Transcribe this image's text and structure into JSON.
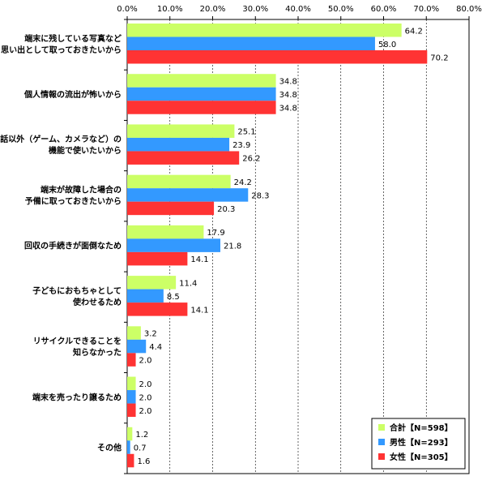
{
  "chart_data": {
    "type": "bar",
    "orientation": "horizontal",
    "xlim": [
      0,
      80
    ],
    "x_ticks": [
      "0.0%",
      "10.0%",
      "20.0%",
      "30.0%",
      "40.0%",
      "50.0%",
      "60.0%",
      "70.0%",
      "80.0%"
    ],
    "grid": true,
    "legend_position": "bottom-right",
    "categories": [
      [
        "端末に残している写真など",
        "思い出として取っておきたいから"
      ],
      [
        "個人情報の流出が怖いから"
      ],
      [
        "通話以外（ゲーム、カメラなど）の",
        "機能で使いたいから"
      ],
      [
        "端末が故障した場合の",
        "予備に取っておきたいから"
      ],
      [
        "回収の手続きが面倒なため"
      ],
      [
        "子どもにおもちゃとして",
        "使わせるため"
      ],
      [
        "リサイクルできることを",
        "知らなかった"
      ],
      [
        "端末を売ったり譲るため"
      ],
      [
        "その他"
      ]
    ],
    "series": [
      {
        "name": "合計【N=598】",
        "color": "#ccff66",
        "values": [
          64.2,
          34.8,
          25.1,
          24.2,
          17.9,
          11.4,
          3.2,
          2.0,
          1.2
        ]
      },
      {
        "name": "男性【N=293】",
        "color": "#3399ff",
        "values": [
          58.0,
          34.8,
          23.9,
          28.3,
          21.8,
          8.5,
          4.4,
          2.0,
          0.7
        ]
      },
      {
        "name": "女性【N=305】",
        "color": "#ff3333",
        "values": [
          70.2,
          34.8,
          26.2,
          20.3,
          14.1,
          14.1,
          2.0,
          2.0,
          1.6
        ]
      }
    ]
  }
}
